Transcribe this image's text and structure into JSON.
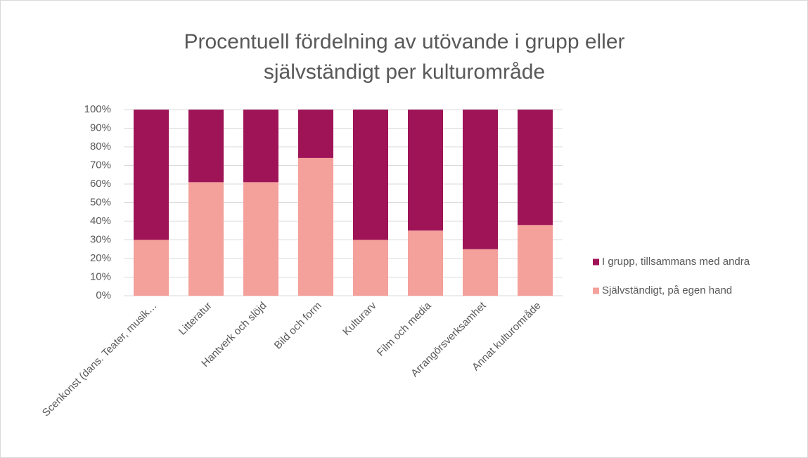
{
  "chart_data": {
    "type": "stacked_bar",
    "title": "Procentuell fördelning av utövande i grupp eller självständigt per kulturområde",
    "categories": [
      "Scenkonst (dans. Teater, musik…",
      "Litteratur",
      "Hantverk och slöjd",
      "Bild och form",
      "Kulturarv",
      "Film och media",
      "Arrangörsverksamhet",
      "Annat kulturområde"
    ],
    "series": [
      {
        "name": "Självständigt, på egen hand",
        "color": "#f4a09b",
        "values": [
          30,
          61,
          61,
          74,
          30,
          35,
          25,
          38
        ]
      },
      {
        "name": "I grupp, tillsammans med andra",
        "color": "#9e1457",
        "values": [
          70,
          39,
          39,
          26,
          70,
          65,
          75,
          62
        ]
      }
    ],
    "ylim": [
      0,
      100
    ],
    "yticks": [
      {
        "value": 0,
        "label": "0%"
      },
      {
        "value": 10,
        "label": "10%"
      },
      {
        "value": 20,
        "label": "20%"
      },
      {
        "value": 30,
        "label": "30%"
      },
      {
        "value": 40,
        "label": "40%"
      },
      {
        "value": 50,
        "label": "50%"
      },
      {
        "value": 60,
        "label": "60%"
      },
      {
        "value": 70,
        "label": "70%"
      },
      {
        "value": 80,
        "label": "80%"
      },
      {
        "value": 90,
        "label": "90%"
      },
      {
        "value": 100,
        "label": "100%"
      }
    ],
    "grid": true,
    "legend": "right"
  }
}
